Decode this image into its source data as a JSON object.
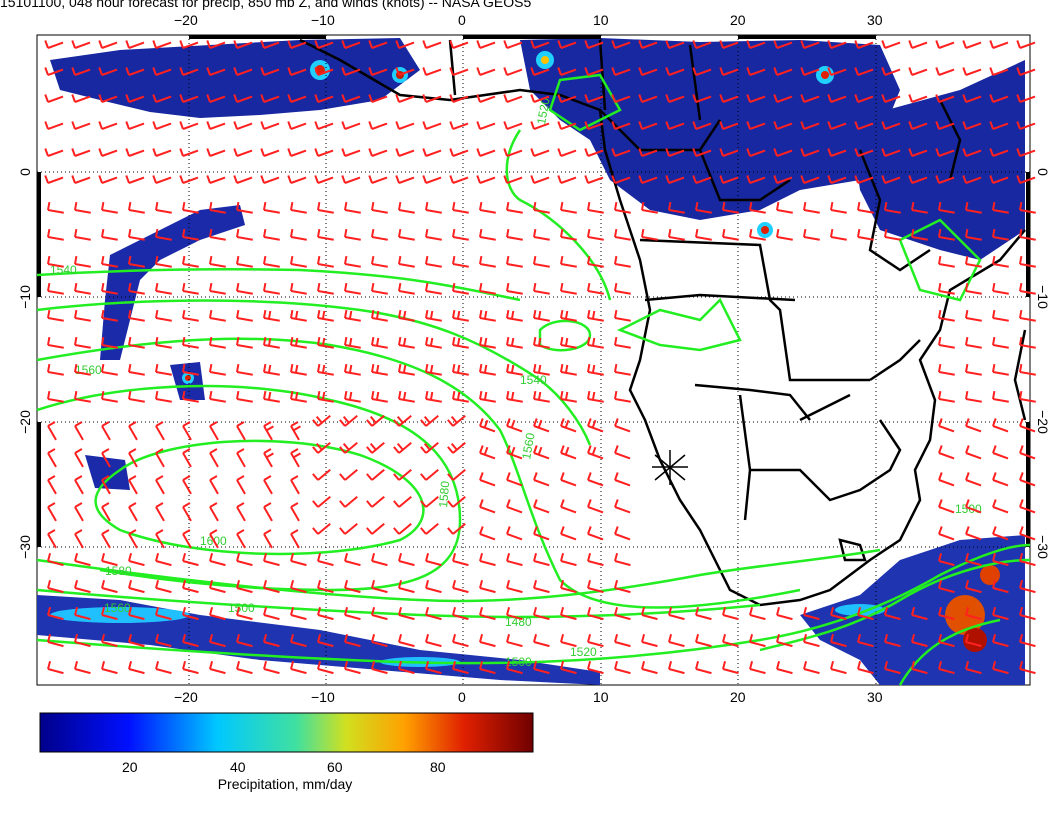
{
  "title": "15101100, 048 hour forecast for precip, 850 mb Z, and winds (knots) -- NASA GEOS5",
  "colors": {
    "wind_barb": "#ff2020",
    "contour": "#22ee22",
    "land_border": "#000000",
    "grid": "#000000"
  },
  "axes": {
    "lon_top": [
      "−20",
      "−10",
      "0",
      "10",
      "20",
      "30"
    ],
    "lon_bottom": [
      "−20",
      "−10",
      "0",
      "10",
      "20",
      "30"
    ],
    "lat_left": [
      "0",
      "−10",
      "−20",
      "−30"
    ],
    "lat_right": [
      "0",
      "−10",
      "−20",
      "−30"
    ]
  },
  "contour_labels": [
    "1520",
    "1540",
    "1560",
    "1540",
    "1560",
    "1580",
    "1600",
    "1580",
    "1560",
    "1500",
    "1480",
    "1500",
    "1520",
    "1500"
  ],
  "colorbar": {
    "ticks": [
      "20",
      "40",
      "60",
      "80"
    ],
    "label": "Precipitation, mm/day"
  }
}
